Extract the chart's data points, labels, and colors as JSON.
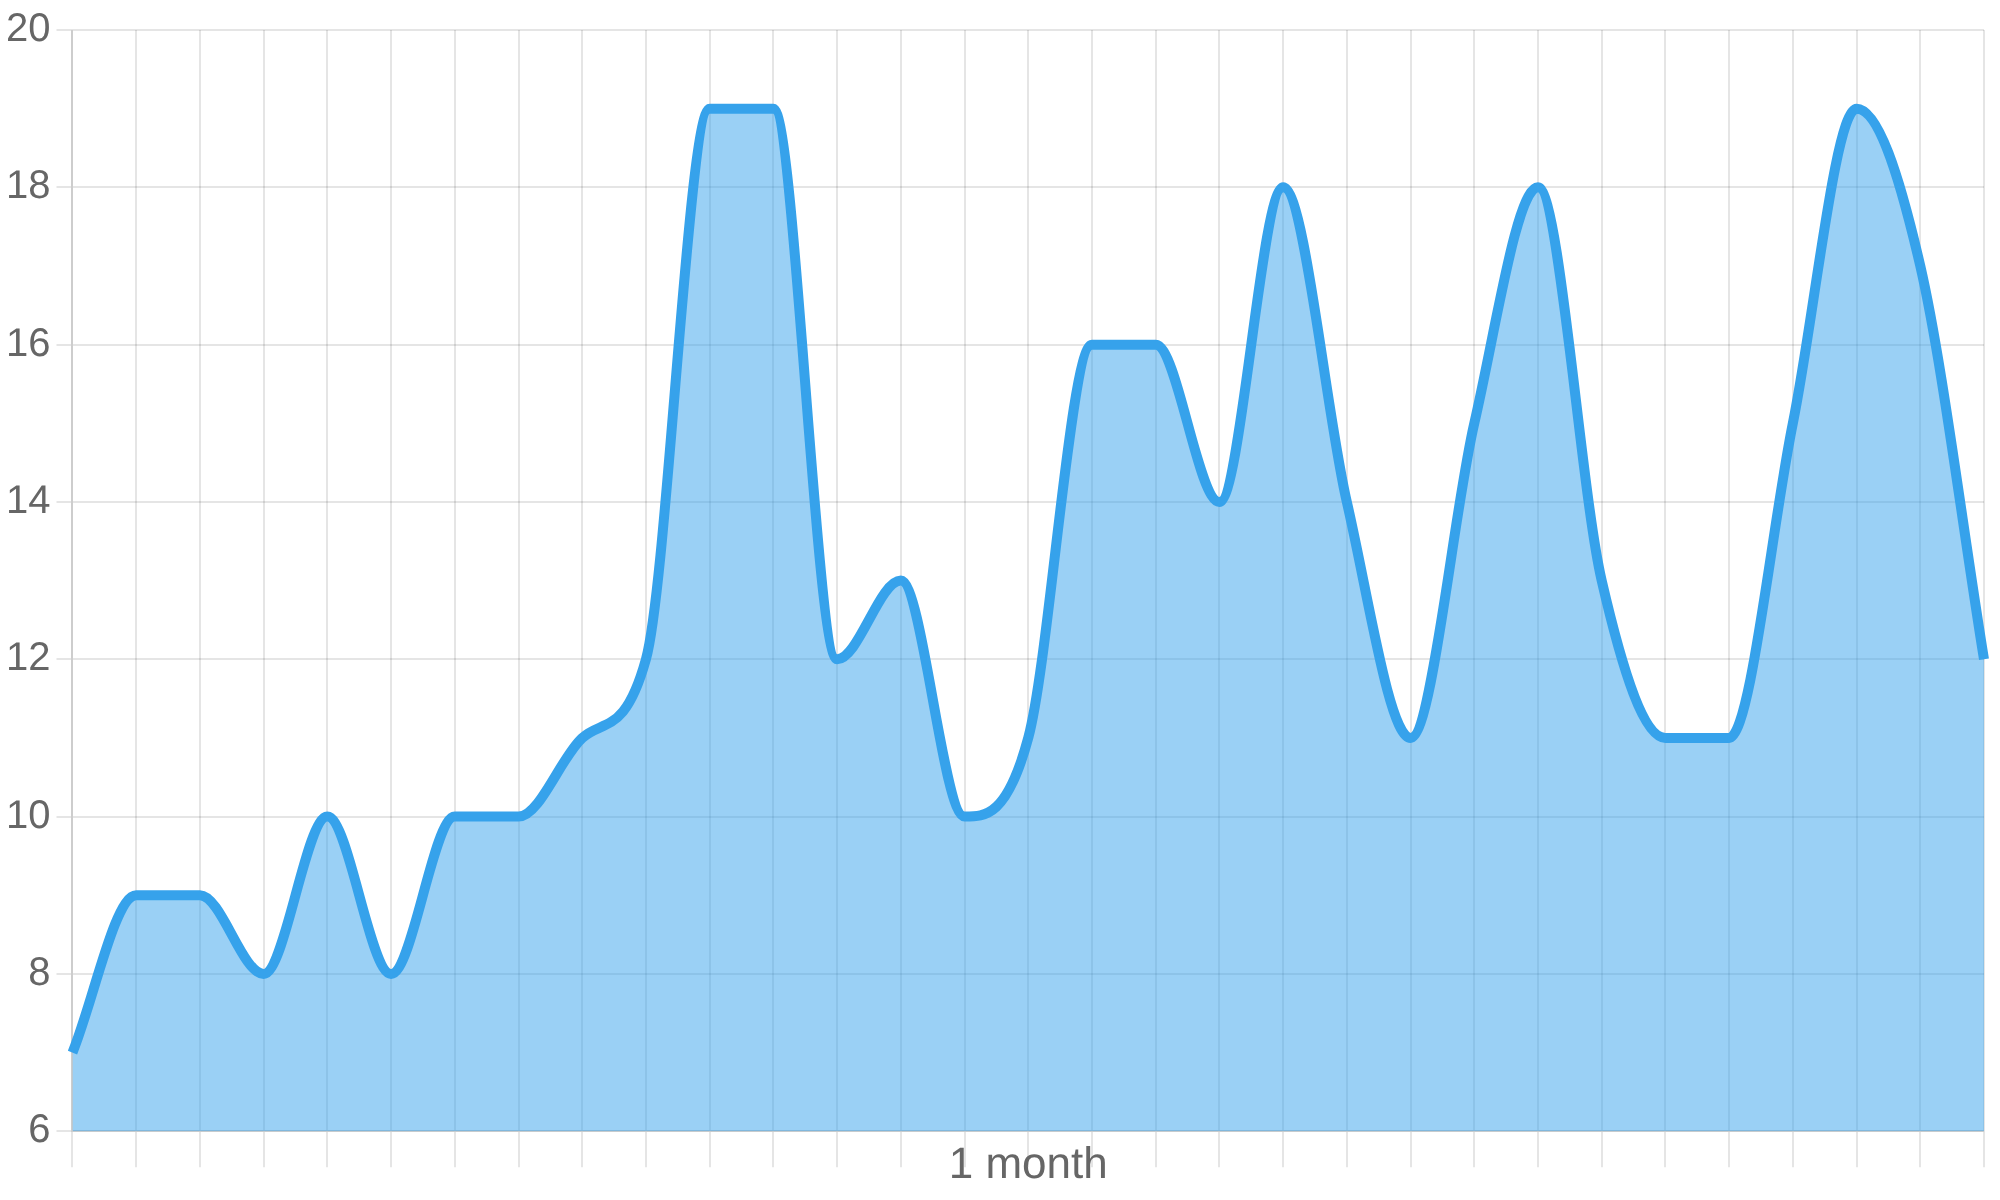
{
  "chart_data": {
    "type": "area",
    "xlabel": "1 month",
    "categories": [
      null,
      null,
      null,
      null,
      null,
      null,
      null,
      null,
      null,
      null,
      null,
      null,
      null,
      null,
      null,
      null,
      null,
      null,
      null,
      null,
      null,
      null,
      null,
      null,
      null,
      null,
      null,
      null,
      null,
      null,
      null
    ],
    "series": [
      {
        "color": "#36a2eb",
        "values": [
          7,
          9,
          9,
          8,
          10,
          8,
          10,
          10,
          11,
          12,
          19,
          19,
          12,
          13,
          10,
          11,
          16,
          16,
          14,
          18,
          14,
          11,
          15,
          18,
          13,
          11,
          11,
          15,
          19,
          17,
          12
        ]
      }
    ],
    "ylim": [
      6,
      20
    ],
    "yticks": [
      6,
      8,
      10,
      12,
      14,
      16,
      18,
      20
    ],
    "grid": true,
    "legend": false,
    "tick_labels": "y",
    "marker": "none"
  }
}
